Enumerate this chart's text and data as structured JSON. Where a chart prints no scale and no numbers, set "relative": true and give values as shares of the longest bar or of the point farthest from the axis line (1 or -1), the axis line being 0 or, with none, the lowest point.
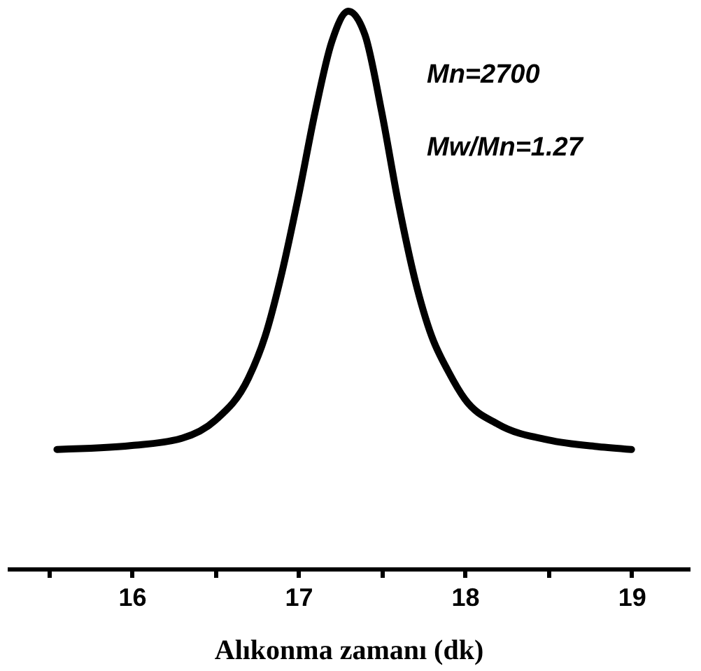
{
  "chart_data": {
    "type": "line",
    "relative": true,
    "xlabel": "Alıkonma zamanı (dk)",
    "x": [
      15.55,
      16.0,
      16.3,
      16.5,
      16.7,
      16.8,
      16.9,
      17.0,
      17.1,
      17.2,
      17.3,
      17.4,
      17.5,
      17.6,
      17.7,
      17.8,
      17.9,
      18.0,
      18.2,
      18.5,
      18.8,
      19.0
    ],
    "series": [
      {
        "color": "#000000",
        "values": [
          0.214,
          0.221,
          0.234,
          0.266,
          0.342,
          0.417,
          0.53,
          0.668,
          0.819,
          0.945,
          1.0,
          0.957,
          0.819,
          0.656,
          0.518,
          0.417,
          0.354,
          0.304,
          0.259,
          0.231,
          0.219,
          0.214
        ]
      }
    ],
    "xlim": [
      15.25,
      19.35
    ],
    "xticks": [
      {
        "value": 15.5,
        "label": null
      },
      16,
      {
        "value": 16.5,
        "label": null
      },
      17,
      {
        "value": 17.5,
        "label": null
      },
      18,
      {
        "value": 18.5,
        "label": null
      },
      19
    ],
    "annotations": [
      "Mn=2700",
      "Mw/Mn=1.27"
    ],
    "line_style": "solid",
    "marker": "none",
    "grid": false
  }
}
